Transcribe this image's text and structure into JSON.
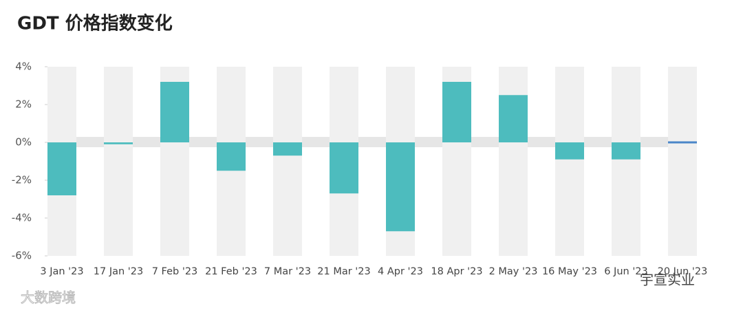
{
  "chart_data": {
    "type": "bar",
    "title": "GDT 价格指数变化",
    "categories": [
      "3 Jan '23",
      "17 Jan '23",
      "7 Feb '23",
      "21 Feb '23",
      "7 Mar '23",
      "21 Mar '23",
      "4 Apr '23",
      "18 Apr '23",
      "2 May '23",
      "16 May '23",
      "6 Jun '23",
      "20 Jun '23"
    ],
    "values": [
      -2.8,
      -0.1,
      3.2,
      -1.5,
      -0.7,
      -2.7,
      -4.7,
      3.2,
      2.5,
      -0.9,
      -0.9,
      0.0
    ],
    "colors": [
      "#4dbcbe",
      "#4dbcbe",
      "#4dbcbe",
      "#4dbcbe",
      "#4dbcbe",
      "#4dbcbe",
      "#4dbcbe",
      "#4dbcbe",
      "#4dbcbe",
      "#4dbcbe",
      "#4dbcbe",
      "#4a86c8"
    ],
    "ylim": [
      -6,
      4
    ],
    "yticks": [
      {
        "value": -6,
        "label": "-6%"
      },
      {
        "value": -4,
        "label": "-4%"
      },
      {
        "value": -2,
        "label": "-2%"
      },
      {
        "value": 0,
        "label": "0%"
      },
      {
        "value": 2,
        "label": "2%"
      },
      {
        "value": 4,
        "label": "4%"
      }
    ],
    "watermarks": [
      "大数跨境",
      "宇宣实业"
    ]
  }
}
